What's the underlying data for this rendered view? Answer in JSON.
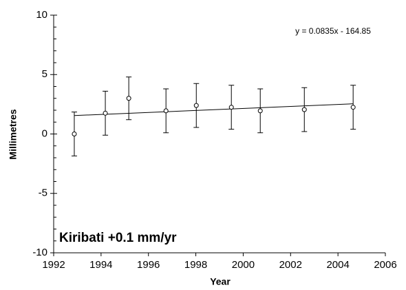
{
  "chart_data": {
    "type": "scatter",
    "xlabel": "Year",
    "ylabel": "Millimetres",
    "annotations": [
      "y = 0.0835x - 164.85",
      "Kiribati +0.1 mm/yr"
    ],
    "x": [
      1992.87,
      1994.18,
      1995.17,
      1996.74,
      1998.02,
      1999.5,
      2000.72,
      2002.58,
      2004.64
    ],
    "values": [
      0,
      1.75,
      3.0,
      1.95,
      2.4,
      2.25,
      1.95,
      2.05,
      2.25
    ],
    "errors": [
      1.85,
      1.85,
      1.8,
      1.85,
      1.85,
      1.85,
      1.85,
      1.85,
      1.85
    ],
    "trendline": {
      "x": [
        1992.87,
        2004.64
      ],
      "values": [
        1.55,
        2.54
      ]
    },
    "color": "#000000",
    "xlim": [
      1992,
      2006
    ],
    "xticks": [
      1992,
      1994,
      1996,
      1998,
      2000,
      2002,
      2004,
      2006
    ],
    "ylim": [
      -10,
      10
    ],
    "yticks": [
      -10,
      -5,
      0,
      5,
      10
    ],
    "y_minor_ticks": [
      -9,
      -8,
      -7,
      -6,
      -4,
      -3,
      -2,
      -1,
      1,
      2,
      3,
      4,
      6,
      7,
      8,
      9
    ]
  }
}
